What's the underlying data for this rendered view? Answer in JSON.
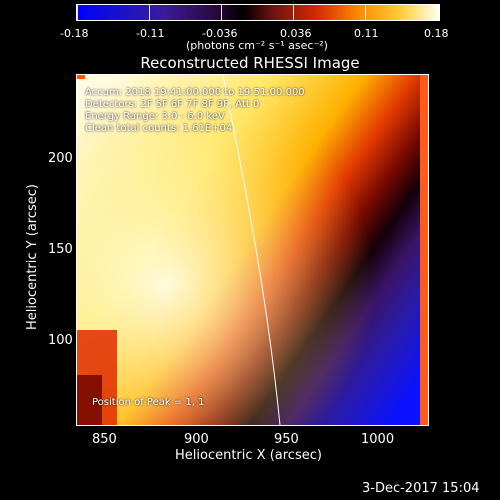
{
  "colorbar": {
    "ticks": [
      "-0.18",
      "-0.11",
      "-0.036",
      "0.036",
      "0.11",
      "0.18"
    ],
    "units_label": "(photons cm⁻² s⁻¹ asec⁻²)"
  },
  "plot": {
    "title": "Reconstructed RHESSI Image",
    "xlabel": "Heliocentric X (arcsec)",
    "ylabel": "Heliocentric Y (arcsec)",
    "xticks": [
      "850",
      "900",
      "950",
      "1000"
    ],
    "yticks": [
      "200",
      "150",
      "100"
    ],
    "legend": [
      "Detectors: 2F 5F 6F 7F 8F 9F, Att 0",
      "Energy Range: 3.0 - 6.0 keV",
      "Clean   total counts: 1.61E+04"
    ],
    "legend_time": "Accum: 2018 19:41:00.000 to 19:51:00.000",
    "pos_label": "Position of Peak = 1, 1"
  },
  "footer": {
    "timestamp": "3-Dec-2017 15:04"
  }
}
